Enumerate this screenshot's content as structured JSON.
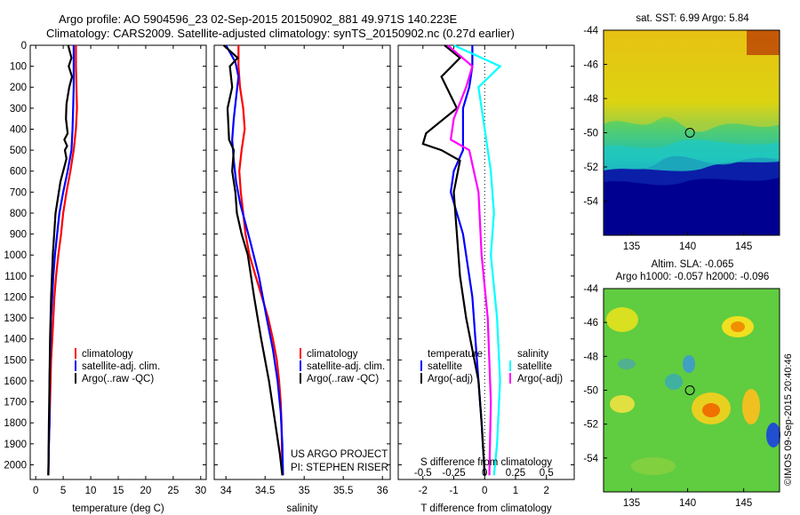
{
  "title": {
    "line1": "Argo profile: AO 5904596_23 02-Sep-2015 20150902_881 49.971S 140.223E",
    "line2": "Climatology: CARS2009. Satellite-adjusted climatology: synTS_20150902.nc (0.27d earlier)"
  },
  "stamp": "©IMOS 09-Sep-2015 20:40:46",
  "credits": {
    "line1": "US ARGO PROJECT",
    "line2": "PI: STEPHEN RISER"
  },
  "colors": {
    "climatology": "#ff0000",
    "satellite": "#0000ff",
    "argo": "#000000",
    "salinity_sat": "#00ffff",
    "salinity_argo": "#ff00ff"
  },
  "legend": {
    "climatology": "climatology",
    "satellite_adj": "satellite-adj. clim.",
    "argo_raw": "Argo(..raw -QC)",
    "temperature": "temperature",
    "salinity": "salinity",
    "satellite": "satellite",
    "argo_adj": "Argo(-adj)"
  },
  "chart_data": [
    {
      "type": "line",
      "xlabel": "temperature (deg C)",
      "ylabel": "",
      "xlim": [
        -1,
        31
      ],
      "ylim": [
        2070,
        0
      ],
      "xticks": [
        0,
        5,
        10,
        15,
        20,
        25,
        30
      ],
      "yticks": [
        0,
        100,
        200,
        300,
        400,
        500,
        600,
        700,
        800,
        900,
        1000,
        1100,
        1200,
        1300,
        1400,
        1500,
        1600,
        1700,
        1800,
        1900,
        2000
      ],
      "series": [
        {
          "name": "climatology",
          "color": "#ff0000",
          "x": [
            7.3,
            7.3,
            7.4,
            7.5,
            7.3,
            6.9,
            6.3,
            5.6,
            5.0,
            4.6,
            4.1,
            3.7,
            3.4,
            3.2,
            3.0,
            2.8,
            2.7,
            2.6,
            2.5,
            2.4,
            2.3
          ],
          "y": [
            0,
            100,
            200,
            300,
            400,
            500,
            600,
            700,
            800,
            900,
            1000,
            1100,
            1200,
            1300,
            1400,
            1500,
            1600,
            1700,
            1800,
            1900,
            2050
          ]
        },
        {
          "name": "satellite-adj. clim.",
          "color": "#0000ff",
          "x": [
            6.9,
            6.9,
            6.9,
            6.8,
            6.7,
            6.5,
            5.8,
            5.0,
            4.3,
            3.9,
            3.5,
            3.2,
            3.0,
            2.8,
            2.7,
            2.6,
            2.5,
            2.5,
            2.4,
            2.3
          ],
          "y": [
            0,
            100,
            200,
            300,
            400,
            500,
            600,
            700,
            800,
            900,
            1000,
            1100,
            1200,
            1300,
            1400,
            1500,
            1600,
            1800,
            1900,
            2050
          ]
        },
        {
          "name": "Argo(..raw -QC)",
          "color": "#000000",
          "x": [
            5.9,
            6.5,
            6.0,
            6.6,
            6.1,
            5.6,
            5.5,
            5.8,
            5.2,
            5.7,
            5.3,
            5.6,
            4.5,
            3.6,
            3.1,
            2.8,
            2.6,
            2.5,
            2.4,
            2.3
          ],
          "y": [
            0,
            60,
            100,
            150,
            200,
            280,
            350,
            420,
            450,
            480,
            500,
            540,
            650,
            800,
            1000,
            1200,
            1400,
            1600,
            1800,
            2050
          ]
        }
      ]
    },
    {
      "type": "line",
      "xlabel": "salinity",
      "ylabel": "",
      "xlim": [
        33.85,
        36.1
      ],
      "ylim": [
        2070,
        0
      ],
      "xticks": [
        34,
        34.5,
        35,
        35.5,
        36
      ],
      "series": [
        {
          "name": "climatology",
          "color": "#ff0000",
          "x": [
            34.16,
            34.16,
            34.18,
            34.22,
            34.24,
            34.2,
            34.17,
            34.19,
            34.22,
            34.25,
            34.3,
            34.38,
            34.46,
            34.54,
            34.6,
            34.65,
            34.68,
            34.7,
            34.71,
            34.72
          ],
          "y": [
            0,
            100,
            200,
            300,
            400,
            500,
            600,
            700,
            800,
            900,
            1000,
            1100,
            1200,
            1300,
            1400,
            1500,
            1600,
            1700,
            1800,
            2050
          ]
        },
        {
          "name": "satellite-adj. clim.",
          "color": "#0000ff",
          "x": [
            34.0,
            34.12,
            34.16,
            34.13,
            34.1,
            34.08,
            34.1,
            34.13,
            34.18,
            34.25,
            34.32,
            34.42,
            34.52,
            34.6,
            34.66,
            34.7,
            34.72,
            34.73
          ],
          "y": [
            0,
            80,
            150,
            250,
            350,
            450,
            550,
            650,
            750,
            850,
            950,
            1100,
            1300,
            1450,
            1600,
            1750,
            1900,
            2050
          ]
        },
        {
          "name": "Argo(..raw -QC)",
          "color": "#000000",
          "x": [
            33.97,
            34.15,
            34.05,
            34.08,
            34.02,
            34.04,
            34.1,
            34.08,
            34.12,
            34.14,
            34.2,
            34.28,
            34.36,
            34.45,
            34.55,
            34.63,
            34.69,
            34.72
          ],
          "y": [
            0,
            60,
            100,
            200,
            300,
            450,
            500,
            600,
            700,
            800,
            900,
            1000,
            1200,
            1400,
            1600,
            1800,
            1950,
            2050
          ]
        }
      ]
    },
    {
      "type": "line",
      "xlabel": "T difference from climatology",
      "xlabel_top": "S difference from climatology",
      "ylabel": "",
      "xlim": [
        -2.8,
        2.9
      ],
      "ylim": [
        2070,
        0
      ],
      "xticks": [
        -2,
        -1,
        0,
        1,
        2
      ],
      "s_xticks_labels": [
        "-0.5",
        "-0.25",
        "0",
        "0.25",
        "0.5"
      ],
      "s_xticks_pos": [
        -2,
        -1,
        0,
        1,
        2
      ],
      "series": [
        {
          "name": "temperature satellite",
          "color": "#0000ff",
          "x": [
            -0.4,
            -0.4,
            -0.5,
            -0.7,
            -0.7,
            -0.7,
            -1.0,
            -1.1,
            -0.9,
            -0.7,
            -0.6,
            -0.4,
            -0.3,
            -0.2,
            -0.1,
            0.0
          ],
          "y": [
            0,
            100,
            200,
            300,
            400,
            500,
            600,
            700,
            800,
            900,
            1000,
            1200,
            1400,
            1600,
            1800,
            2050
          ]
        },
        {
          "name": "temperature Argo(-adj)",
          "color": "#000000",
          "x": [
            -1.3,
            -0.8,
            -1.4,
            -0.9,
            -1.9,
            -2.0,
            -1.4,
            -0.8,
            -1.0,
            -0.9,
            -0.8,
            -0.6,
            -0.2,
            -0.1,
            0.0
          ],
          "y": [
            0,
            60,
            150,
            300,
            420,
            470,
            500,
            550,
            700,
            900,
            1100,
            1300,
            1600,
            1800,
            2050
          ]
        },
        {
          "name": "salinity satellite",
          "color": "#00ffff",
          "x": [
            -1.0,
            0.5,
            -0.2,
            0.0,
            0.2,
            0.3,
            0.2,
            0.4,
            0.5,
            0.4,
            0.3
          ],
          "y": [
            0,
            100,
            200,
            400,
            600,
            800,
            1000,
            1300,
            1600,
            1900,
            2050
          ]
        },
        {
          "name": "salinity Argo(-adj)",
          "color": "#ff00ff",
          "x": [
            -1.2,
            -0.4,
            -0.6,
            -1.0,
            -1.1,
            -0.5,
            -0.2,
            -0.1,
            0.1,
            0.2,
            0.15
          ],
          "y": [
            0,
            100,
            200,
            350,
            450,
            500,
            700,
            1000,
            1300,
            1700,
            2050
          ]
        }
      ]
    }
  ],
  "maps": {
    "sst": {
      "title": "sat. SST: 6.99 Argo: 5.84",
      "xticks": [
        "135",
        "140",
        "145"
      ],
      "yticks": [
        "-44",
        "-46",
        "-48",
        "-50",
        "-52",
        "-54"
      ],
      "marker_lon": 140.2,
      "marker_lat": -50.0
    },
    "sla": {
      "title1": "Altim. SLA: -0.065",
      "title2": "Argo h1000: -0.057 h2000: -0.096",
      "xticks": [
        "135",
        "140",
        "145"
      ],
      "yticks": [
        "-44",
        "-46",
        "-48",
        "-50",
        "-52",
        "-54"
      ],
      "marker_lon": 140.2,
      "marker_lat": -50.0
    }
  }
}
